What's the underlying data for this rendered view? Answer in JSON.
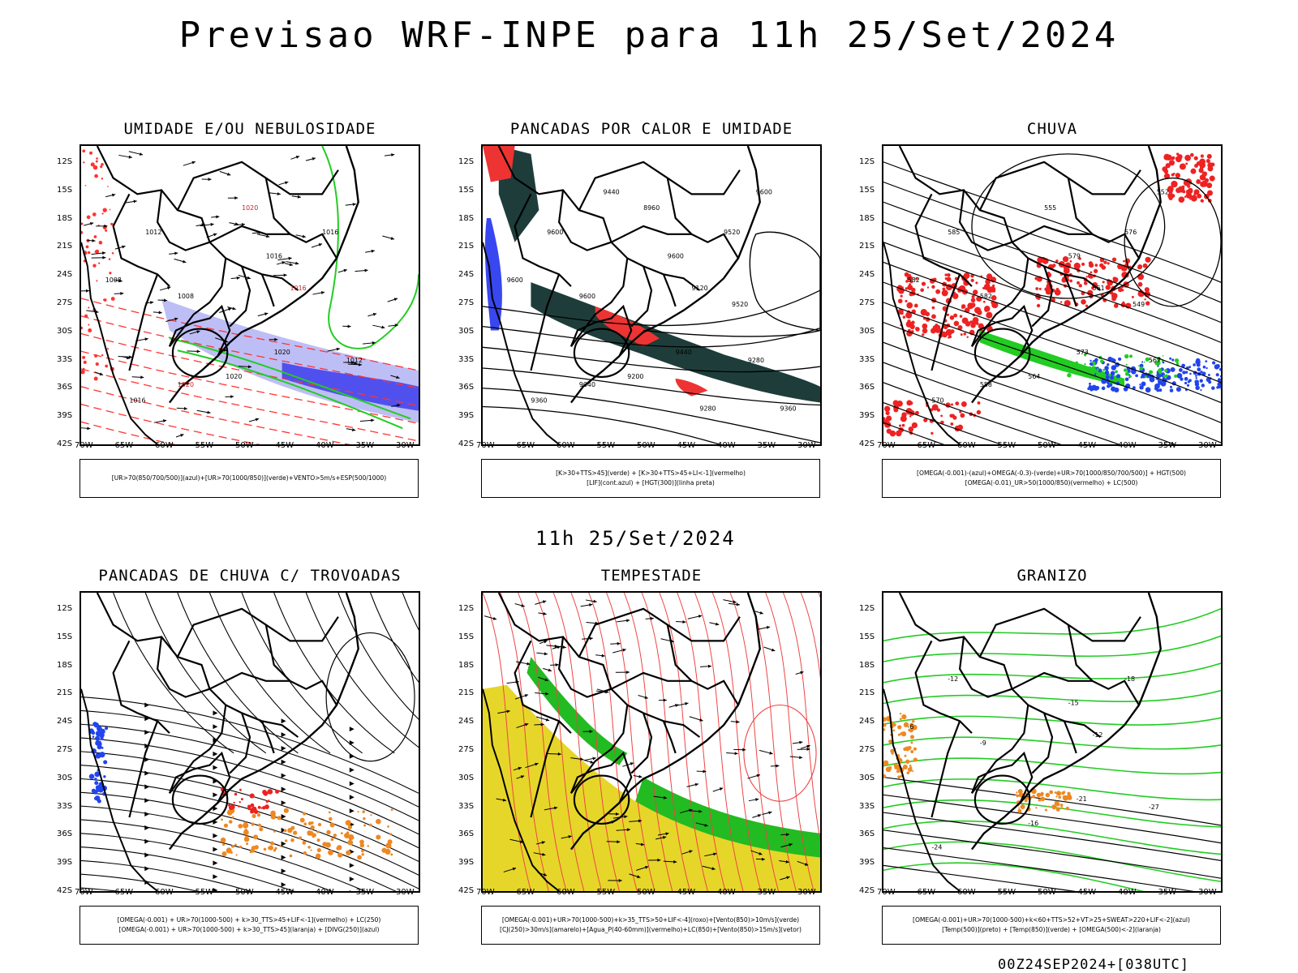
{
  "header": {
    "title": "Previsao WRF-INPE  para 11h 25/Set/2024",
    "mid_title": "11h 25/Set/2024",
    "footer": "00Z24SEP2024+[038UTC]"
  },
  "axes": {
    "lat_labels": [
      "12S",
      "15S",
      "18S",
      "21S",
      "24S",
      "27S",
      "30S",
      "33S",
      "36S",
      "39S",
      "42S"
    ],
    "lon_labels": [
      "70W",
      "65W",
      "60W",
      "55W",
      "50W",
      "45W",
      "40W",
      "35W",
      "30W"
    ]
  },
  "colors": {
    "humidity_blue": "#4444ee",
    "humidity_green": "#22cc22",
    "rain_red": "#ee2222",
    "storm_yellow": "#e6d62a",
    "hail_orange": "#ee8822",
    "thunder_dark": "#1e3d3a"
  },
  "panels": [
    {
      "id": "umidade",
      "title": "UMIDADE E/OU NEBULOSIDADE",
      "legend": [
        "[UR>70(850/700/500)](azul)+[UR>70(1000/850)](verde)+VENTO>5m/s+ESP(500/1000)"
      ],
      "contour_labels": [
        "1008",
        "1008",
        "1012",
        "1016",
        "1016",
        "1020",
        "1016",
        "1012",
        "1020",
        "1016",
        "1020",
        "1020"
      ]
    },
    {
      "id": "pancadas-calor",
      "title": "PANCADAS POR CALOR E UMIDADE",
      "legend": [
        "[K>30+TTS>45](verde) + [K>30+TTS>45+LI<-1](vermelho)",
        "[LIF](cont.azul) + [HGT(300)](linha preta)"
      ],
      "contour_labels": [
        "9600",
        "9600",
        "9600",
        "9600",
        "9520",
        "9440",
        "9360",
        "9280",
        "9200",
        "9120",
        "9040",
        "8960",
        "9600",
        "9520",
        "9440",
        "9360",
        "9280"
      ]
    },
    {
      "id": "chuva",
      "title": "CHUVA",
      "legend": [
        "[OMEGA(-0.001)-(azul)+OMEGA(-0.3)-(verde)+UR>70(1000/850/700/500)] + HGT(500)",
        "[OMEGA(-0.01)_UR>50(1000/850)(vermelho) + LC(500)"
      ],
      "contour_labels": [
        "582",
        "582",
        "585",
        "579",
        "576",
        "573",
        "570",
        "567",
        "564",
        "561",
        "558",
        "555",
        "552",
        "549"
      ]
    },
    {
      "id": "pancadas-trovoadas",
      "title": "PANCADAS DE CHUVA C/ TROVOADAS",
      "legend": [
        "[OMEGA(-0.001) + UR>70(1000-500) + k>30_TTS>45+LIF<-1](vermelho) + LC(250)",
        "[OMEGA(-0.001) + UR>70(1000-500) + k>30_TTS>45](laranja) + [DIVG(250)](azul)"
      ],
      "contour_labels": []
    },
    {
      "id": "tempestade",
      "title": "TEMPESTADE",
      "legend": [
        "[OMEGA(-0.001)+UR>70(1000-500)+k>35_TTS>50+LIF<-4](roxo)+[Vento(850)>10m/s](verde)",
        "[CJ(250)>30m/s](amarelo)+[Agua_P(40-60mm)](vermelho)+LC(850)+[Vento(850)>15m/s](vetor)"
      ],
      "contour_labels": []
    },
    {
      "id": "granizo",
      "title": "GRANIZO",
      "legend": [
        "[OMEGA(-0.001)+UR>70(1000-500)+k<60+TTS>52+VT>25+SWEAT>220+LIF<-2](azul)",
        "[Temp(500)](preto) + [Temp(850)](verde) + [OMEGA(500)<-2](laranja)"
      ],
      "contour_labels": [
        "-6",
        "-9",
        "-12",
        "-15",
        "-18",
        "-21",
        "-24",
        "-27",
        "-16",
        "-12"
      ]
    }
  ]
}
